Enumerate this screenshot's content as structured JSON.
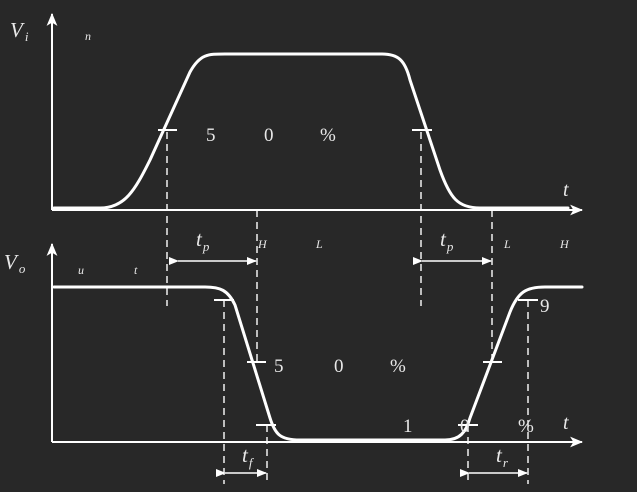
{
  "colors": {
    "background": "#282828",
    "stroke": "#ffffff",
    "text": "#e8e8e8"
  },
  "input": {
    "axis_label": "V",
    "axis_label_sub": "i",
    "fragment_n": "n",
    "time_label": "t",
    "percent_label": [
      "5",
      "0",
      "%"
    ],
    "tp_main": "t",
    "tp_sub": "p",
    "level_h": "H",
    "level_l": "L"
  },
  "output": {
    "axis_label": "V",
    "axis_label_sub": "o",
    "fragment_u": "u",
    "fragment_t": "t",
    "time_label": "t",
    "percent_label": [
      "5",
      "0",
      "%"
    ],
    "ninety_label": "9",
    "ten_label": [
      "1",
      "0",
      "%"
    ],
    "tp_main": "t",
    "tp_sub": "p",
    "level_l": "L",
    "level_h": "H",
    "tf_main": "t",
    "tf_sub": "f",
    "tr_main": "t",
    "tr_sub": "r"
  }
}
